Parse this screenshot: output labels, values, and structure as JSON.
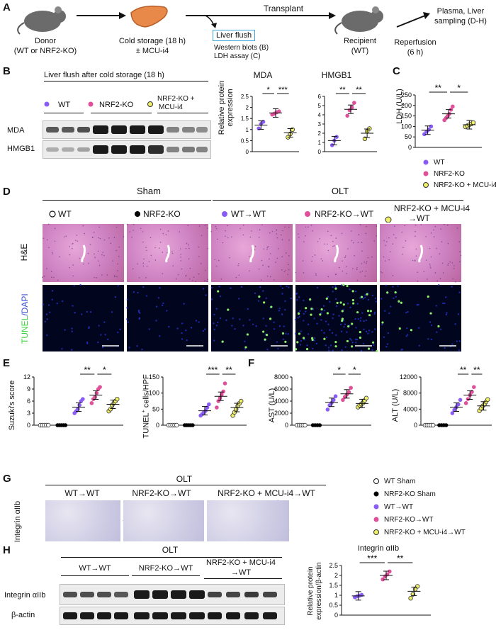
{
  "panels": {
    "A": "A",
    "B": "B",
    "C": "C",
    "D": "D",
    "E": "E",
    "F": "F",
    "G": "G",
    "H": "H"
  },
  "a": {
    "donor_line1": "Donor",
    "donor_line2": "(WT or NRF2-KO)",
    "cold_line1": "Cold storage (18 h)",
    "cold_line2": "± MCU-i4",
    "transplant": "Transplant",
    "liver_flush": "Liver flush",
    "wb": "Western blots (B)",
    "ldh": "LDH assay (C)",
    "recipient_line1": "Recipient",
    "recipient_line2": "(WT)",
    "reperfusion_line1": "Reperfusion",
    "reperfusion_line2": "(6 h)",
    "plasma_line1": "Plasma, Liver",
    "plasma_line2": "sampling (D-H)"
  },
  "b": {
    "blot_title": "Liver flush after cold storage (18 h)",
    "legend": [
      "WT",
      "NRF2-KO",
      "NRF2-KO +",
      "MCU-i4"
    ],
    "rows": [
      "MDA",
      "HMGB1"
    ],
    "mda_title": "MDA",
    "hmgb1_title": "HMGB1",
    "ylabel_line1": "Relative protein",
    "ylabel_line2": "expression"
  },
  "c": {
    "ylabel": "LDH (U/L)",
    "legend": [
      "WT",
      "NRF2-KO",
      "NRF2-KO + MCU-i4"
    ]
  },
  "d": {
    "sham": "Sham",
    "olt": "OLT",
    "groups": [
      "WT",
      "NRF2-KO",
      "WT→WT",
      "NRF2-KO→WT",
      "NRF2-KO + MCU-i4",
      "→WT"
    ],
    "row1": "H&E",
    "row2_a": "TUNEL",
    "row2_b": "/DAPI"
  },
  "e": {
    "ylabel1": "Suzuki's score",
    "ylabel2_a": "TUNEL",
    "ylabel2_sup": "+",
    "ylabel2_b": " cells/HPF"
  },
  "f": {
    "ylabel1": "AST (U/L)",
    "ylabel2": "ALT (U/L)"
  },
  "g": {
    "olt": "OLT",
    "groups": [
      "WT→WT",
      "NRF2-KO→WT",
      "NRF2-KO + MCU-i4→WT"
    ],
    "row": "Integrin αIIb"
  },
  "legend2": [
    "WT Sham",
    "NRF2-KO Sham",
    "WT→WT",
    "NRF2-KO→WT",
    "NRF2-KO + MCU-i4→WT"
  ],
  "h": {
    "olt": "OLT",
    "groups": [
      "WT→WT",
      "NRF2-KO→WT",
      "NRF2-KO + MCU-i4",
      "→WT"
    ],
    "rows": [
      "Integrin αIIb",
      "β-actin"
    ],
    "chart_title": "Integrin αIIb",
    "ylabel_line1": "Relative protein",
    "ylabel_line2": "expression/β-actin"
  },
  "colors": {
    "wt": "#8a5cf6",
    "ko": "#e0509a",
    "mcu": "#f0f06a",
    "sham_wt": "#ffffff",
    "sham_ko": "#000000"
  },
  "chart_data": [
    {
      "id": "b-mda",
      "type": "scatter",
      "title": "MDA",
      "ylabel": "Relative protein expression",
      "ylim": [
        0,
        2.5
      ],
      "yticks": [
        0,
        0.5,
        1,
        1.5,
        2,
        2.5
      ],
      "groups": [
        {
          "color": "wt",
          "mean": 1.2,
          "values": [
            1.05,
            1.25,
            1.35
          ]
        },
        {
          "color": "ko",
          "mean": 1.75,
          "values": [
            1.68,
            1.72,
            1.78,
            1.82
          ]
        },
        {
          "color": "mcu",
          "mean": 0.85,
          "values": [
            0.65,
            0.8,
            1.0
          ]
        }
      ],
      "sig": [
        {
          "from": 0,
          "to": 1,
          "label": "*"
        },
        {
          "from": 1,
          "to": 2,
          "label": "***"
        }
      ]
    },
    {
      "id": "b-hmgb1",
      "type": "scatter",
      "title": "HMGB1",
      "ylim": [
        0,
        6
      ],
      "yticks": [
        0,
        1,
        2,
        3,
        4,
        5,
        6
      ],
      "groups": [
        {
          "color": "wt",
          "mean": 1.2,
          "values": [
            0.7,
            1.2,
            1.6
          ]
        },
        {
          "color": "ko",
          "mean": 4.6,
          "values": [
            3.9,
            4.5,
            4.8,
            5.3
          ]
        },
        {
          "color": "mcu",
          "mean": 2.0,
          "values": [
            1.4,
            2.2,
            2.5
          ]
        }
      ],
      "sig": [
        {
          "from": 0,
          "to": 1,
          "label": "**"
        },
        {
          "from": 1,
          "to": 2,
          "label": "**"
        }
      ]
    },
    {
      "id": "c-ldh",
      "type": "scatter",
      "ylabel": "LDH (U/L)",
      "ylim": [
        0,
        250
      ],
      "yticks": [
        0,
        50,
        100,
        150,
        200,
        250
      ],
      "groups": [
        {
          "color": "wt",
          "mean": 82,
          "values": [
            63,
            75,
            85,
            100
          ]
        },
        {
          "color": "ko",
          "mean": 160,
          "values": [
            130,
            140,
            150,
            160,
            180,
            195
          ]
        },
        {
          "color": "mcu",
          "mean": 108,
          "values": [
            98,
            103,
            108,
            112,
            118
          ]
        }
      ],
      "sig": [
        {
          "from": 0,
          "to": 1,
          "label": "**"
        },
        {
          "from": 1,
          "to": 2,
          "label": "*"
        }
      ]
    },
    {
      "id": "e-suzuki",
      "type": "scatter",
      "ylabel": "Suzuki's score",
      "ylim": [
        0,
        12
      ],
      "yticks": [
        0,
        3,
        6,
        9,
        12
      ],
      "groups": [
        {
          "color": "sham_wt",
          "mean": 0,
          "values": [
            0,
            0,
            0,
            0,
            0
          ]
        },
        {
          "color": "sham_ko",
          "mean": 0,
          "values": [
            0,
            0,
            0,
            0,
            0
          ]
        },
        {
          "color": "wt",
          "mean": 4.5,
          "values": [
            3,
            3.5,
            4,
            5,
            6,
            6.5
          ]
        },
        {
          "color": "ko",
          "mean": 7.5,
          "values": [
            5.5,
            6.5,
            7,
            8,
            9,
            9.5
          ]
        },
        {
          "color": "mcu",
          "mean": 5.2,
          "values": [
            3.5,
            4,
            5,
            5.5,
            6,
            6.5
          ]
        }
      ],
      "sig": [
        {
          "from": 2,
          "to": 3,
          "label": "**"
        },
        {
          "from": 3,
          "to": 4,
          "label": "*"
        }
      ]
    },
    {
      "id": "e-tunel",
      "type": "scatter",
      "ylabel": "TUNEL+ cells/HPF",
      "ylim": [
        0,
        150
      ],
      "yticks": [
        0,
        50,
        100,
        150
      ],
      "groups": [
        {
          "color": "sham_wt",
          "mean": 0,
          "values": [
            0,
            0,
            0,
            0,
            0
          ]
        },
        {
          "color": "sham_ko",
          "mean": 0,
          "values": [
            0,
            0,
            0,
            0,
            0
          ]
        },
        {
          "color": "wt",
          "mean": 45,
          "values": [
            30,
            35,
            40,
            45,
            55,
            65
          ]
        },
        {
          "color": "ko",
          "mean": 90,
          "values": [
            55,
            75,
            85,
            95,
            105,
            130
          ]
        },
        {
          "color": "mcu",
          "mean": 55,
          "values": [
            30,
            40,
            50,
            60,
            68,
            75
          ]
        }
      ],
      "sig": [
        {
          "from": 2,
          "to": 3,
          "label": "***"
        },
        {
          "from": 3,
          "to": 4,
          "label": "**"
        }
      ]
    },
    {
      "id": "f-ast",
      "type": "scatter",
      "ylabel": "AST (U/L)",
      "ylim": [
        0,
        8000
      ],
      "yticks": [
        0,
        2000,
        4000,
        6000,
        8000
      ],
      "groups": [
        {
          "color": "sham_wt",
          "mean": 0,
          "values": [
            0,
            0,
            0,
            0,
            0
          ]
        },
        {
          "color": "sham_ko",
          "mean": 0,
          "values": [
            0,
            0,
            0,
            0
          ]
        },
        {
          "color": "wt",
          "mean": 3800,
          "values": [
            2600,
            3300,
            3700,
            4200,
            4800
          ]
        },
        {
          "color": "ko",
          "mean": 5200,
          "values": [
            4200,
            4700,
            5100,
            5500,
            6200
          ]
        },
        {
          "color": "mcu",
          "mean": 3600,
          "values": [
            3000,
            3300,
            3500,
            3700,
            4100,
            4500
          ]
        }
      ],
      "sig": [
        {
          "from": 2,
          "to": 3,
          "label": "*"
        },
        {
          "from": 3,
          "to": 4,
          "label": "*"
        }
      ]
    },
    {
      "id": "f-alt",
      "type": "scatter",
      "ylabel": "ALT (U/L)",
      "ylim": [
        0,
        12000
      ],
      "yticks": [
        0,
        4000,
        8000,
        12000
      ],
      "groups": [
        {
          "color": "sham_wt",
          "mean": 0,
          "values": [
            0,
            0,
            0,
            0,
            0
          ]
        },
        {
          "color": "sham_ko",
          "mean": 0,
          "values": [
            0,
            0,
            0,
            0
          ]
        },
        {
          "color": "wt",
          "mean": 4500,
          "values": [
            3000,
            3800,
            4500,
            5200,
            6300
          ]
        },
        {
          "color": "ko",
          "mean": 7500,
          "values": [
            5500,
            6500,
            7500,
            8300,
            9500
          ]
        },
        {
          "color": "mcu",
          "mean": 4800,
          "values": [
            3600,
            4200,
            4800,
            5200,
            5800,
            6400
          ]
        }
      ],
      "sig": [
        {
          "from": 2,
          "to": 3,
          "label": "**"
        },
        {
          "from": 3,
          "to": 4,
          "label": "**"
        }
      ]
    },
    {
      "id": "h-integrin",
      "type": "scatter",
      "title": "Integrin αIIb",
      "ylabel": "Relative protein expression/β-actin",
      "ylim": [
        0,
        2.5
      ],
      "yticks": [
        0,
        0.5,
        1,
        1.5,
        2,
        2.5
      ],
      "groups": [
        {
          "color": "wt",
          "mean": 0.97,
          "values": [
            0.9,
            0.95,
            0.98,
            1.02
          ]
        },
        {
          "color": "ko",
          "mean": 2.0,
          "values": [
            1.8,
            1.95,
            2.05,
            2.2
          ]
        },
        {
          "color": "mcu",
          "mean": 1.2,
          "values": [
            0.85,
            1.05,
            1.3,
            1.45
          ]
        }
      ],
      "sig": [
        {
          "from": 0,
          "to": 1,
          "label": "***"
        },
        {
          "from": 1,
          "to": 2,
          "label": "**"
        }
      ]
    }
  ]
}
